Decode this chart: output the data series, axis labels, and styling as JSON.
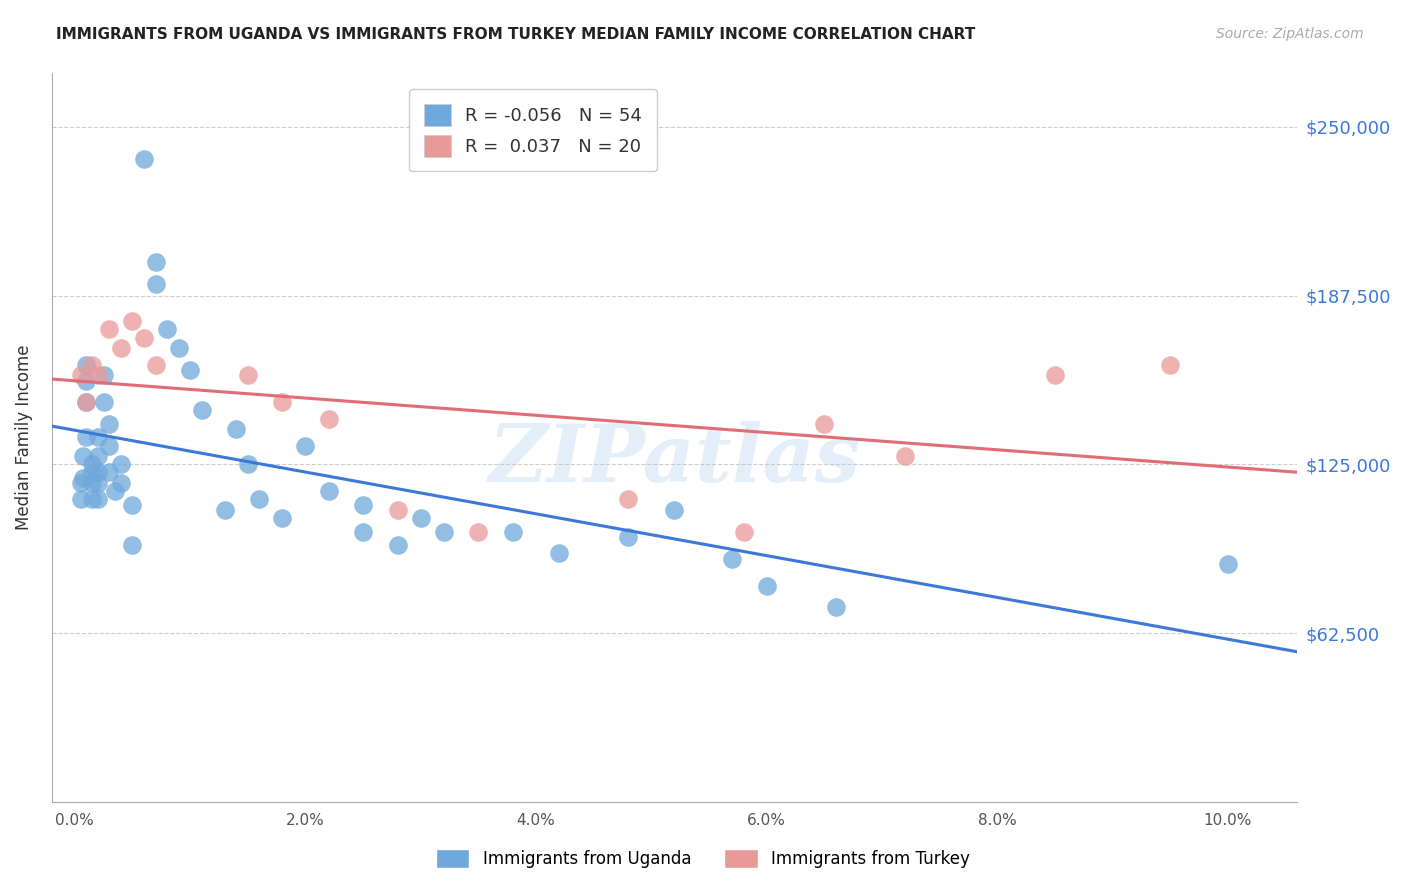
{
  "title": "IMMIGRANTS FROM UGANDA VS IMMIGRANTS FROM TURKEY MEDIAN FAMILY INCOME CORRELATION CHART",
  "source": "Source: ZipAtlas.com",
  "ylabel": "Median Family Income",
  "xlabel_ticks": [
    "0.0%",
    "2.0%",
    "4.0%",
    "6.0%",
    "8.0%",
    "10.0%"
  ],
  "xlabel_vals": [
    0.0,
    0.02,
    0.04,
    0.06,
    0.08,
    0.1
  ],
  "ytick_labels": [
    "$62,500",
    "$125,000",
    "$187,500",
    "$250,000"
  ],
  "ytick_vals": [
    62500,
    125000,
    187500,
    250000
  ],
  "ylim": [
    0,
    270000
  ],
  "xlim": [
    -0.002,
    0.106
  ],
  "uganda_R": "-0.056",
  "uganda_N": "54",
  "turkey_R": "0.037",
  "turkey_N": "20",
  "uganda_color": "#6fa8dc",
  "turkey_color": "#ea9999",
  "uganda_line_color": "#3c78d8",
  "turkey_line_color": "#e06c75",
  "watermark": "ZIPatlas",
  "uganda_x": [
    0.0005,
    0.0005,
    0.0007,
    0.0007,
    0.001,
    0.001,
    0.001,
    0.001,
    0.0015,
    0.0015,
    0.0015,
    0.0015,
    0.002,
    0.002,
    0.002,
    0.002,
    0.002,
    0.0025,
    0.0025,
    0.003,
    0.003,
    0.003,
    0.0035,
    0.004,
    0.004,
    0.005,
    0.005,
    0.006,
    0.007,
    0.007,
    0.008,
    0.009,
    0.01,
    0.011,
    0.013,
    0.014,
    0.015,
    0.016,
    0.018,
    0.02,
    0.022,
    0.025,
    0.025,
    0.028,
    0.03,
    0.032,
    0.038,
    0.042,
    0.048,
    0.052,
    0.057,
    0.06,
    0.066,
    0.1
  ],
  "uganda_y": [
    118000,
    112000,
    128000,
    120000,
    162000,
    156000,
    148000,
    135000,
    125000,
    122000,
    118000,
    112000,
    135000,
    128000,
    122000,
    118000,
    112000,
    158000,
    148000,
    140000,
    132000,
    122000,
    115000,
    125000,
    118000,
    110000,
    95000,
    238000,
    200000,
    192000,
    175000,
    168000,
    160000,
    145000,
    108000,
    138000,
    125000,
    112000,
    105000,
    132000,
    115000,
    110000,
    100000,
    95000,
    105000,
    100000,
    100000,
    92000,
    98000,
    108000,
    90000,
    80000,
    72000,
    88000
  ],
  "turkey_x": [
    0.0005,
    0.001,
    0.0015,
    0.002,
    0.003,
    0.004,
    0.005,
    0.006,
    0.007,
    0.015,
    0.018,
    0.022,
    0.028,
    0.035,
    0.048,
    0.058,
    0.065,
    0.072,
    0.085,
    0.095
  ],
  "turkey_y": [
    158000,
    148000,
    162000,
    158000,
    175000,
    168000,
    178000,
    172000,
    162000,
    158000,
    148000,
    142000,
    108000,
    100000,
    112000,
    100000,
    140000,
    128000,
    158000,
    162000
  ]
}
